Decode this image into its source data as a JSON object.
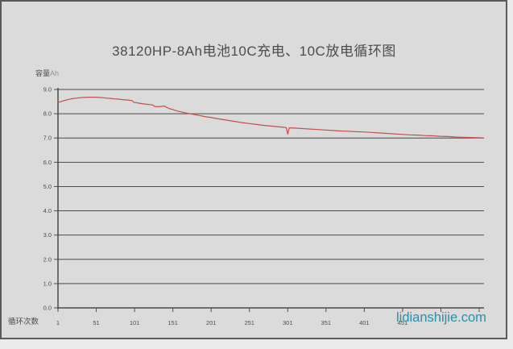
{
  "title": "38120HP-8Ah电池10C充电、10C放电循环图",
  "watermark": "lidianshijie.com",
  "axis_titles": {
    "y": "容量",
    "y_unit": "Ah",
    "x": "循环次数"
  },
  "colors": {
    "background": "#dbdbdb",
    "outer_background": "#eaeaea",
    "frame_border": "#5a5a5c",
    "grid": "#4b4b4b",
    "text": "#4c4c4c",
    "text_light": "#949494",
    "curve": "#c0504d",
    "watermark": "#2d8ea3"
  },
  "chart_data": {
    "type": "line",
    "title": "38120HP-8Ah电池10C充电、10C放电循环图",
    "xlabel": "循环次数",
    "ylabel": "容量Ah",
    "xlim": [
      1,
      560
    ],
    "ylim": [
      0,
      9
    ],
    "grid": "horizontal",
    "legend": "none",
    "y_ticks": [
      0,
      1,
      2,
      3,
      4,
      5,
      6,
      7,
      8,
      9
    ],
    "y_tick_labels": [
      "0.0",
      "1.0",
      "2.0",
      "3.0",
      "4.0",
      "5.0",
      "6.0",
      "7.0",
      "8.0",
      "9.0"
    ],
    "x_ticks": [
      1,
      51,
      101,
      151,
      201,
      251,
      301,
      351,
      401,
      451,
      501,
      551
    ],
    "x_tick_labels_visible": [
      "1",
      "51",
      "101",
      "151",
      "201",
      "251",
      "301",
      "351",
      "401",
      "451"
    ],
    "series": [
      {
        "name": "capacity_Ah",
        "points": [
          [
            1,
            8.47
          ],
          [
            5,
            8.5
          ],
          [
            10,
            8.55
          ],
          [
            15,
            8.59
          ],
          [
            20,
            8.62
          ],
          [
            25,
            8.64
          ],
          [
            30,
            8.66
          ],
          [
            35,
            8.67
          ],
          [
            40,
            8.68
          ],
          [
            45,
            8.68
          ],
          [
            50,
            8.68
          ],
          [
            55,
            8.67
          ],
          [
            60,
            8.66
          ],
          [
            65,
            8.64
          ],
          [
            70,
            8.63
          ],
          [
            75,
            8.61
          ],
          [
            80,
            8.6
          ],
          [
            85,
            8.58
          ],
          [
            90,
            8.57
          ],
          [
            95,
            8.55
          ],
          [
            98,
            8.54
          ],
          [
            100,
            8.47
          ],
          [
            103,
            8.46
          ],
          [
            106,
            8.44
          ],
          [
            110,
            8.42
          ],
          [
            115,
            8.4
          ],
          [
            120,
            8.38
          ],
          [
            125,
            8.36
          ],
          [
            127,
            8.3
          ],
          [
            130,
            8.29
          ],
          [
            135,
            8.3
          ],
          [
            140,
            8.32
          ],
          [
            143,
            8.26
          ],
          [
            146,
            8.22
          ],
          [
            150,
            8.18
          ],
          [
            155,
            8.13
          ],
          [
            160,
            8.09
          ],
          [
            165,
            8.05
          ],
          [
            170,
            8.02
          ],
          [
            175,
            7.99
          ],
          [
            180,
            7.96
          ],
          [
            185,
            7.93
          ],
          [
            190,
            7.9
          ],
          [
            195,
            7.87
          ],
          [
            200,
            7.85
          ],
          [
            210,
            7.79
          ],
          [
            220,
            7.74
          ],
          [
            230,
            7.69
          ],
          [
            240,
            7.64
          ],
          [
            250,
            7.6
          ],
          [
            260,
            7.56
          ],
          [
            270,
            7.52
          ],
          [
            280,
            7.49
          ],
          [
            290,
            7.46
          ],
          [
            297,
            7.44
          ],
          [
            299,
            7.43
          ],
          [
            301,
            7.16
          ],
          [
            303,
            7.42
          ],
          [
            310,
            7.41
          ],
          [
            320,
            7.39
          ],
          [
            330,
            7.37
          ],
          [
            340,
            7.35
          ],
          [
            350,
            7.33
          ],
          [
            360,
            7.31
          ],
          [
            370,
            7.29
          ],
          [
            380,
            7.28
          ],
          [
            390,
            7.26
          ],
          [
            400,
            7.25
          ],
          [
            410,
            7.23
          ],
          [
            420,
            7.21
          ],
          [
            430,
            7.19
          ],
          [
            440,
            7.17
          ],
          [
            450,
            7.15
          ],
          [
            460,
            7.13
          ],
          [
            470,
            7.12
          ],
          [
            480,
            7.1
          ],
          [
            490,
            7.09
          ],
          [
            500,
            7.07
          ],
          [
            510,
            7.06
          ],
          [
            520,
            7.04
          ],
          [
            530,
            7.03
          ],
          [
            540,
            7.02
          ],
          [
            550,
            7.01
          ],
          [
            557,
            7.0
          ]
        ]
      }
    ]
  }
}
